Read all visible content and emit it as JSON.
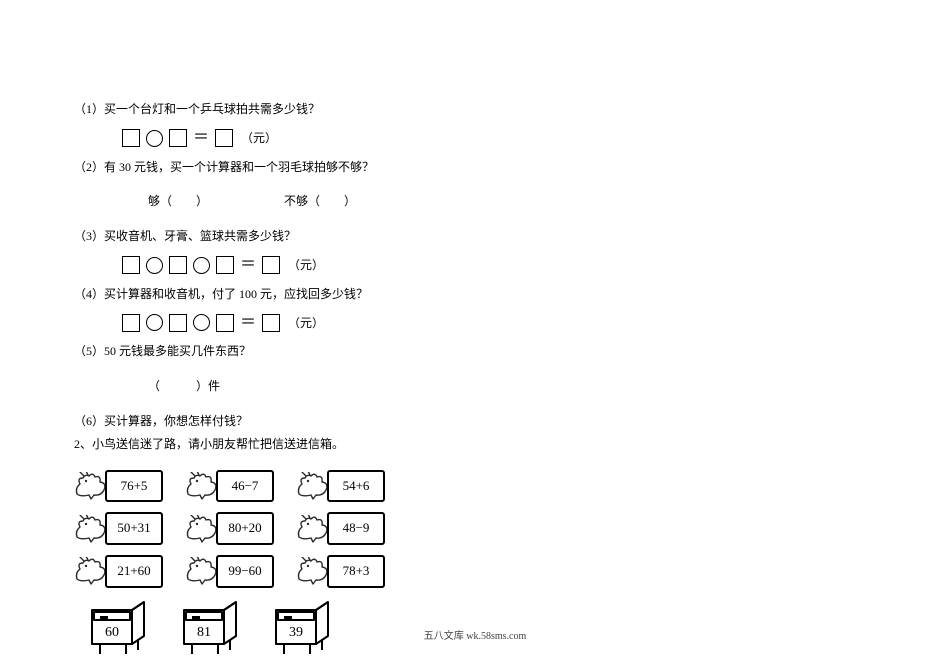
{
  "q1": {
    "label": "（1）买一个台灯和一个乒乓球拍共需多少钱？",
    "unit": "（元）"
  },
  "q2": {
    "label": "（2）有 30 元钱，买一个计算器和一个羽毛球拍够不够？",
    "enough": "够（　　）",
    "not_enough": "不够（　　）"
  },
  "q3": {
    "label": "（3）买收音机、牙膏、篮球共需多少钱？",
    "unit": "（元）"
  },
  "q4": {
    "label": "（4）买计算器和收音机，付了 100 元，应找回多少钱？",
    "unit": "（元）"
  },
  "q5": {
    "label": "（5）50 元钱最多能买几件东西？",
    "ans": "（　　　）件"
  },
  "q6": {
    "label": "（6）买计算器，你想怎样付钱？"
  },
  "q_bird": {
    "label": "2、小鸟送信迷了路，请小朋友帮忙把信送进信箱。"
  },
  "birds": {
    "row1": [
      {
        "expr": "76+5"
      },
      {
        "expr": "46−7"
      },
      {
        "expr": "54+6"
      }
    ],
    "row2": [
      {
        "expr": "50+31"
      },
      {
        "expr": "80+20"
      },
      {
        "expr": "48−9"
      }
    ],
    "row3": [
      {
        "expr": "21+60"
      },
      {
        "expr": "99−60"
      },
      {
        "expr": "78+3"
      }
    ]
  },
  "mailboxes": [
    {
      "num": "60"
    },
    {
      "num": "81"
    },
    {
      "num": "39"
    }
  ],
  "footer": "五八文库 wk.58sms.com",
  "style": {
    "bird_stroke": "#2b2b2b",
    "bird_fill": "#ffffff",
    "box_border": "#000000",
    "mailbox_stroke": "#000000"
  }
}
